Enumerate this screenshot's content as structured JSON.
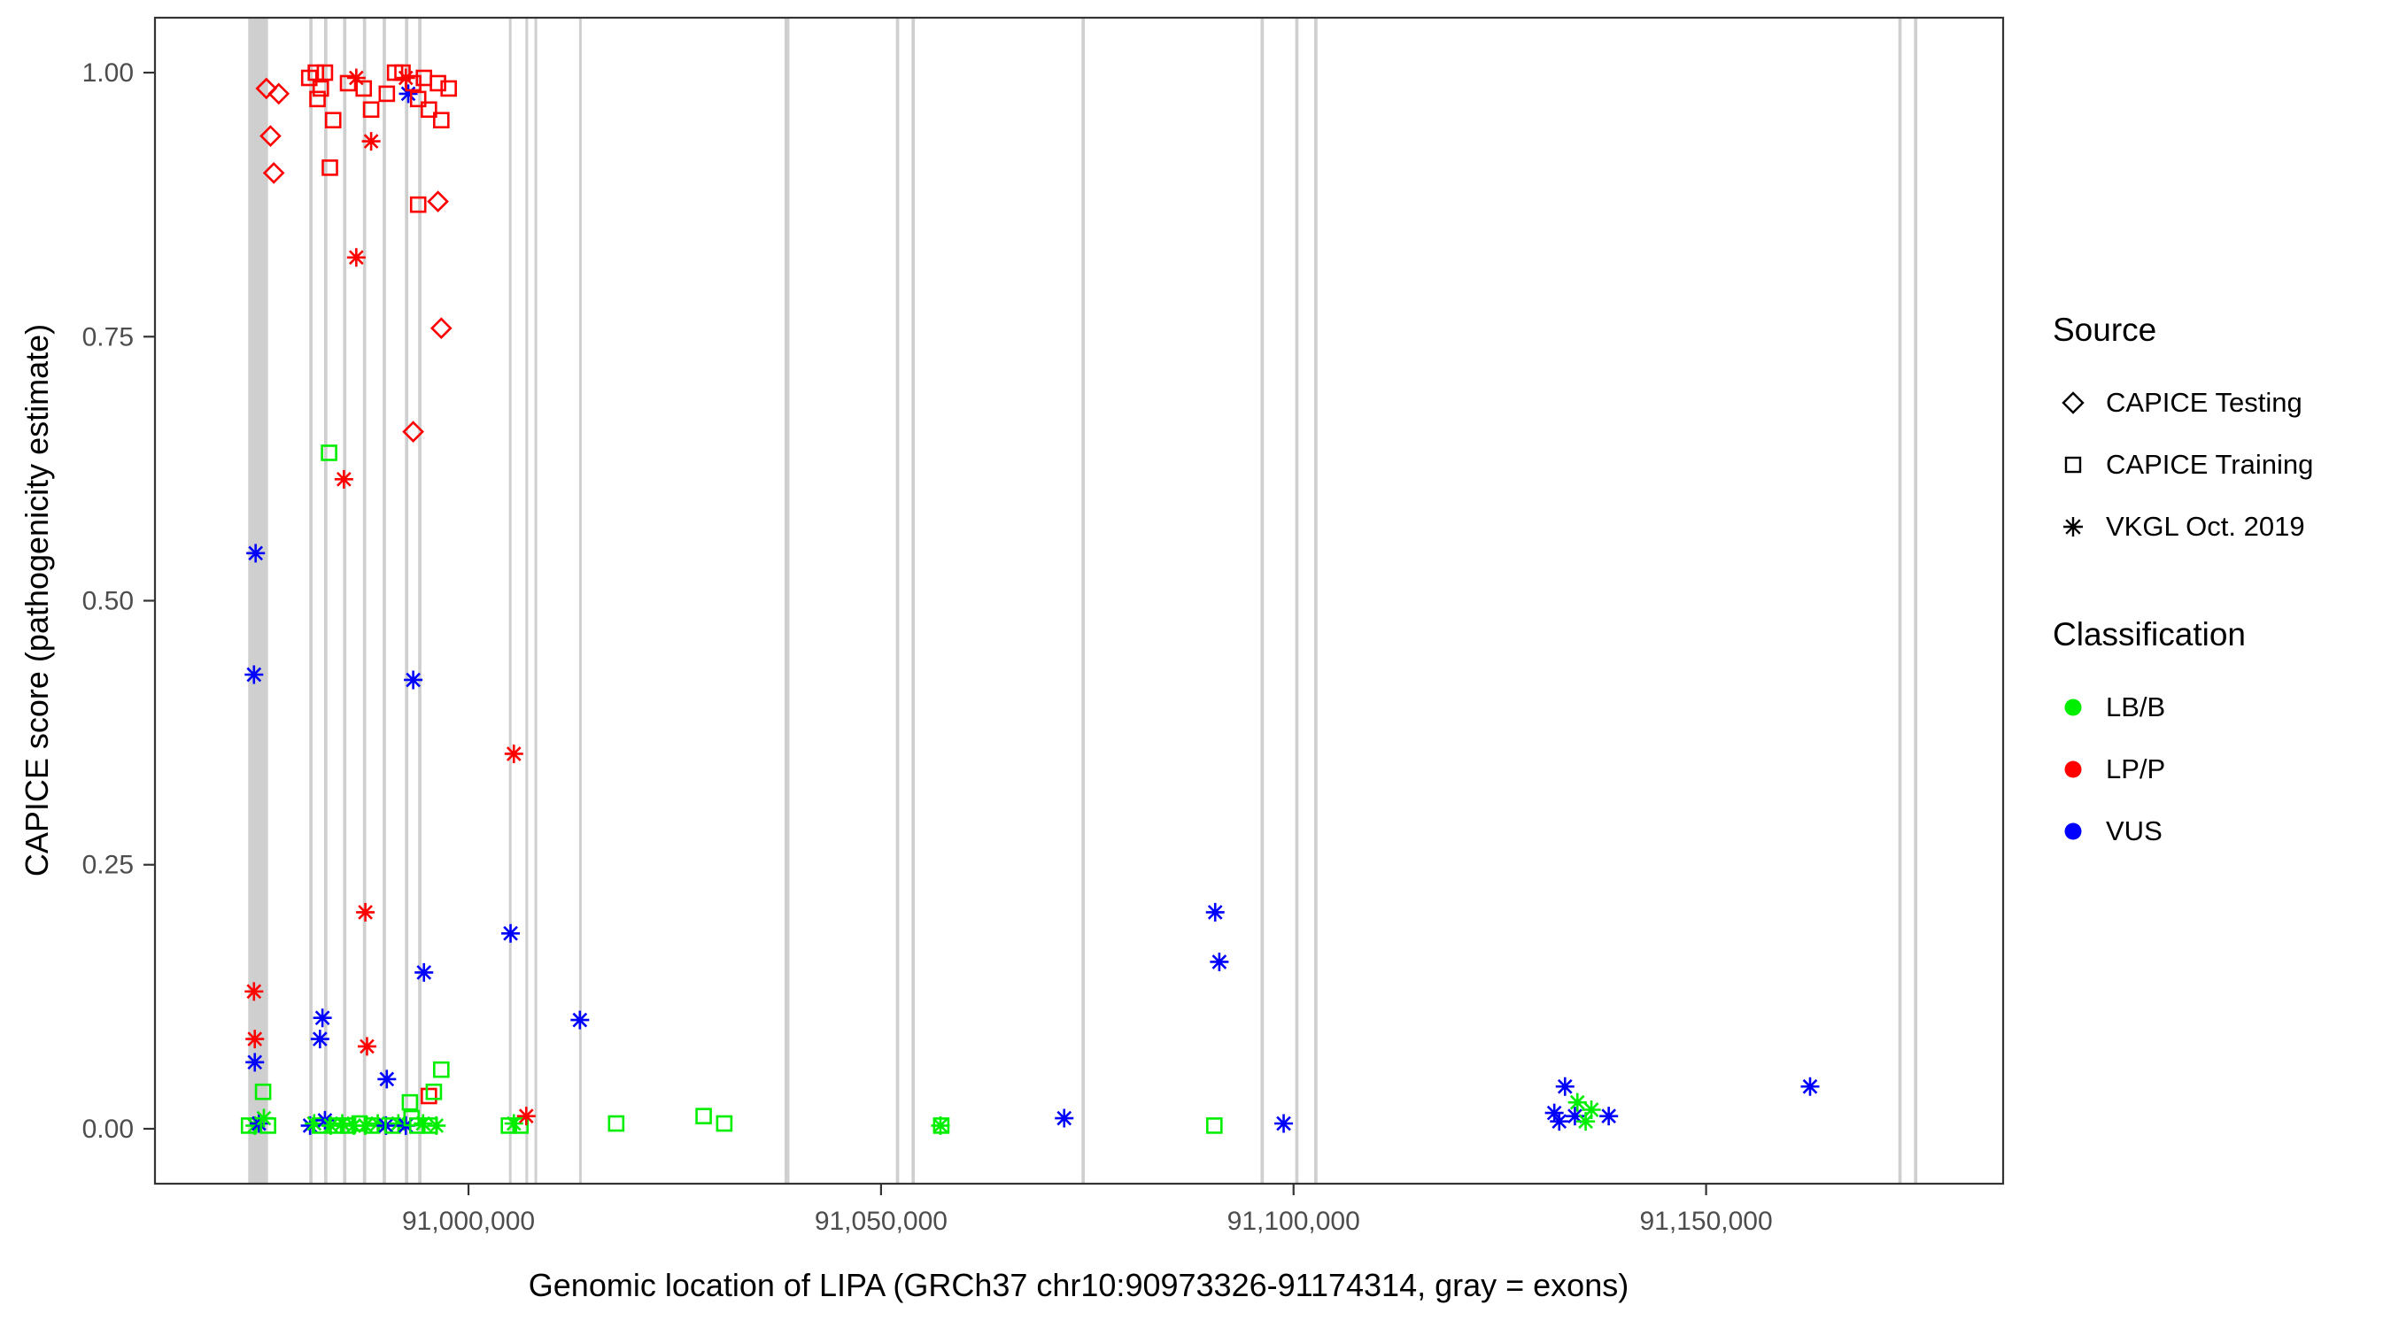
{
  "chart_data": {
    "type": "scatter",
    "title": "",
    "xlabel": "Genomic location of LIPA (GRCh37 chr10:90973326-91174314, gray = exons)",
    "ylabel": "CAPICE score (pathogenicity estimate)",
    "x_domain": [
      90962000,
      91186000
    ],
    "y_domain": [
      -0.052,
      1.052
    ],
    "x_ticks": [
      {
        "value": 91000000,
        "label": "91,000,000"
      },
      {
        "value": 91050000,
        "label": "91,050,000"
      },
      {
        "value": 91100000,
        "label": "91,100,000"
      },
      {
        "value": 91150000,
        "label": "91,150,000"
      }
    ],
    "y_ticks": [
      {
        "value": 0.0,
        "label": "0.00"
      },
      {
        "value": 0.25,
        "label": "0.25"
      },
      {
        "value": 0.5,
        "label": "0.50"
      },
      {
        "value": 0.75,
        "label": "0.75"
      },
      {
        "value": 1.0,
        "label": "1.00"
      }
    ],
    "grid": false,
    "exon_color": "#cfcfcf",
    "panel_border_color": "#333333",
    "tick_label_color": "#4d4d4d",
    "colors": {
      "LB/B": "#00ee00",
      "LP/P": "#ff0000",
      "VUS": "#0000ff"
    },
    "source_shapes": {
      "testing": "diamond",
      "training": "square",
      "vkgl": "asterisk"
    },
    "exons": [
      [
        90973300,
        90975700
      ],
      [
        90980700,
        90981100
      ],
      [
        90982500,
        90982900
      ],
      [
        90984800,
        90985200
      ],
      [
        90987200,
        90987600
      ],
      [
        90989600,
        90990000
      ],
      [
        90992300,
        90992700
      ],
      [
        90993900,
        90994300
      ],
      [
        91004900,
        91005200
      ],
      [
        91006900,
        91007200
      ],
      [
        91008000,
        91008300
      ],
      [
        91013400,
        91013700
      ],
      [
        91038300,
        91038900
      ],
      [
        91051800,
        91052200
      ],
      [
        91053700,
        91054100
      ],
      [
        91074300,
        91074700
      ],
      [
        91096000,
        91096400
      ],
      [
        91100200,
        91100600
      ],
      [
        91102500,
        91102900
      ],
      [
        91173300,
        91173700
      ],
      [
        91175200,
        91175600
      ]
    ],
    "points_format": [
      "genomic_position",
      "capice_score",
      "source",
      "classification"
    ],
    "points": [
      [
        90975500,
        0.985,
        "testing",
        "LP/P"
      ],
      [
        90977000,
        0.98,
        "testing",
        "LP/P"
      ],
      [
        90976000,
        0.94,
        "testing",
        "LP/P"
      ],
      [
        90976400,
        0.905,
        "testing",
        "LP/P"
      ],
      [
        90980700,
        0.995,
        "training",
        "LP/P"
      ],
      [
        90981500,
        1.0,
        "training",
        "LP/P"
      ],
      [
        90982100,
        0.985,
        "training",
        "LP/P"
      ],
      [
        90982600,
        1.0,
        "training",
        "LP/P"
      ],
      [
        90981700,
        0.975,
        "training",
        "LP/P"
      ],
      [
        90985400,
        0.99,
        "training",
        "LP/P"
      ],
      [
        90983600,
        0.955,
        "training",
        "LP/P"
      ],
      [
        90983200,
        0.91,
        "training",
        "LP/P"
      ],
      [
        90986400,
        0.995,
        "vkgl",
        "LP/P"
      ],
      [
        90987300,
        0.985,
        "training",
        "LP/P"
      ],
      [
        90988200,
        0.965,
        "training",
        "LP/P"
      ],
      [
        90988200,
        0.935,
        "vkgl",
        "LP/P"
      ],
      [
        90986400,
        0.825,
        "vkgl",
        "LP/P"
      ],
      [
        90984900,
        0.615,
        "vkgl",
        "LP/P"
      ],
      [
        90983100,
        0.64,
        "training",
        "LB/B"
      ],
      [
        90990100,
        0.98,
        "training",
        "LP/P"
      ],
      [
        90991100,
        1.0,
        "training",
        "LP/P"
      ],
      [
        90992000,
        1.0,
        "training",
        "LP/P"
      ],
      [
        90992400,
        0.995,
        "vkgl",
        "LP/P"
      ],
      [
        90992700,
        0.98,
        "vkgl",
        "VUS"
      ],
      [
        90993300,
        0.99,
        "training",
        "LP/P"
      ],
      [
        90993900,
        0.975,
        "training",
        "LP/P"
      ],
      [
        90994600,
        0.995,
        "training",
        "LP/P"
      ],
      [
        90995200,
        0.965,
        "training",
        "LP/P"
      ],
      [
        90996300,
        0.99,
        "training",
        "LP/P"
      ],
      [
        90996700,
        0.955,
        "training",
        "LP/P"
      ],
      [
        90997600,
        0.985,
        "training",
        "LP/P"
      ],
      [
        90993900,
        0.875,
        "training",
        "LP/P"
      ],
      [
        90996300,
        0.878,
        "testing",
        "LP/P"
      ],
      [
        90996700,
        0.758,
        "testing",
        "LP/P"
      ],
      [
        90993300,
        0.66,
        "testing",
        "LP/P"
      ],
      [
        90974200,
        0.545,
        "vkgl",
        "VUS"
      ],
      [
        90974000,
        0.43,
        "vkgl",
        "VUS"
      ],
      [
        90993300,
        0.425,
        "vkgl",
        "VUS"
      ],
      [
        91005500,
        0.355,
        "vkgl",
        "LP/P"
      ],
      [
        90987500,
        0.205,
        "vkgl",
        "LP/P"
      ],
      [
        91005100,
        0.185,
        "vkgl",
        "VUS"
      ],
      [
        90994600,
        0.148,
        "vkgl",
        "VUS"
      ],
      [
        91013500,
        0.103,
        "vkgl",
        "VUS"
      ],
      [
        90974000,
        0.13,
        "vkgl",
        "LP/P"
      ],
      [
        90974100,
        0.085,
        "vkgl",
        "LP/P"
      ],
      [
        90974100,
        0.063,
        "vkgl",
        "VUS"
      ],
      [
        90982300,
        0.105,
        "vkgl",
        "VUS"
      ],
      [
        90982000,
        0.085,
        "vkgl",
        "VUS"
      ],
      [
        90987700,
        0.078,
        "vkgl",
        "LP/P"
      ],
      [
        90990100,
        0.047,
        "vkgl",
        "VUS"
      ],
      [
        90975100,
        0.035,
        "training",
        "LB/B"
      ],
      [
        90996700,
        0.056,
        "training",
        "LB/B"
      ],
      [
        90992900,
        0.025,
        "training",
        "LB/B"
      ],
      [
        90995200,
        0.031,
        "training",
        "LP/P"
      ],
      [
        90995800,
        0.035,
        "training",
        "LB/B"
      ],
      [
        90973400,
        0.003,
        "training",
        "LB/B"
      ],
      [
        90974100,
        0.003,
        "vkgl",
        "LB/B"
      ],
      [
        90974600,
        0.005,
        "vkgl",
        "VUS"
      ],
      [
        90975200,
        0.01,
        "vkgl",
        "LB/B"
      ],
      [
        90975700,
        0.003,
        "training",
        "LB/B"
      ],
      [
        90980800,
        0.003,
        "vkgl",
        "VUS"
      ],
      [
        90981300,
        0.005,
        "vkgl",
        "LB/B"
      ],
      [
        90982000,
        0.003,
        "training",
        "LB/B"
      ],
      [
        90982600,
        0.008,
        "vkgl",
        "VUS"
      ],
      [
        90983300,
        0.003,
        "vkgl",
        "LB/B"
      ],
      [
        90984000,
        0.003,
        "training",
        "LB/B"
      ],
      [
        90984700,
        0.005,
        "vkgl",
        "LB/B"
      ],
      [
        90985400,
        0.003,
        "training",
        "LB/B"
      ],
      [
        90986100,
        0.003,
        "vkgl",
        "LB/B"
      ],
      [
        90986800,
        0.005,
        "training",
        "LB/B"
      ],
      [
        90987500,
        0.003,
        "vkgl",
        "LB/B"
      ],
      [
        90988300,
        0.003,
        "training",
        "LB/B"
      ],
      [
        90989000,
        0.005,
        "vkgl",
        "LB/B"
      ],
      [
        90990000,
        0.003,
        "vkgl",
        "VUS"
      ],
      [
        90990800,
        0.003,
        "training",
        "LB/B"
      ],
      [
        90991500,
        0.005,
        "vkgl",
        "LB/B"
      ],
      [
        90992400,
        0.003,
        "vkgl",
        "VUS"
      ],
      [
        90993100,
        0.01,
        "training",
        "LB/B"
      ],
      [
        90993800,
        0.003,
        "training",
        "LB/B"
      ],
      [
        90994500,
        0.005,
        "vkgl",
        "LB/B"
      ],
      [
        90995300,
        0.003,
        "training",
        "LB/B"
      ],
      [
        90996100,
        0.003,
        "vkgl",
        "LB/B"
      ],
      [
        91004900,
        0.003,
        "training",
        "LB/B"
      ],
      [
        91005500,
        0.005,
        "vkgl",
        "LB/B"
      ],
      [
        91006300,
        0.003,
        "training",
        "LB/B"
      ],
      [
        91007000,
        0.012,
        "vkgl",
        "LP/P"
      ],
      [
        91017900,
        0.005,
        "training",
        "LB/B"
      ],
      [
        91028500,
        0.012,
        "training",
        "LB/B"
      ],
      [
        91031000,
        0.005,
        "training",
        "LB/B"
      ],
      [
        91057200,
        0.003,
        "vkgl",
        "LB/B"
      ],
      [
        91057300,
        0.003,
        "training",
        "LB/B"
      ],
      [
        91072200,
        0.01,
        "vkgl",
        "VUS"
      ],
      [
        91090400,
        0.003,
        "training",
        "LB/B"
      ],
      [
        91090500,
        0.205,
        "vkgl",
        "VUS"
      ],
      [
        91091000,
        0.158,
        "vkgl",
        "VUS"
      ],
      [
        91098800,
        0.005,
        "vkgl",
        "VUS"
      ],
      [
        91131600,
        0.015,
        "vkgl",
        "VUS"
      ],
      [
        91132200,
        0.007,
        "vkgl",
        "VUS"
      ],
      [
        91132900,
        0.04,
        "vkgl",
        "VUS"
      ],
      [
        91134100,
        0.012,
        "vkgl",
        "VUS"
      ],
      [
        91134400,
        0.025,
        "vkgl",
        "LB/B"
      ],
      [
        91135400,
        0.007,
        "vkgl",
        "LB/B"
      ],
      [
        91136100,
        0.018,
        "vkgl",
        "LB/B"
      ],
      [
        91138200,
        0.012,
        "vkgl",
        "VUS"
      ],
      [
        91162600,
        0.04,
        "vkgl",
        "VUS"
      ]
    ]
  },
  "legend": {
    "source": {
      "title": "Source",
      "items": [
        {
          "label": "CAPICE Testing",
          "shape": "diamond"
        },
        {
          "label": "CAPICE Training",
          "shape": "square"
        },
        {
          "label": "VKGL Oct. 2019",
          "shape": "asterisk"
        }
      ]
    },
    "classification": {
      "title": "Classification",
      "items": [
        {
          "label": "LB/B",
          "color": "#00ee00"
        },
        {
          "label": "LP/P",
          "color": "#ff0000"
        },
        {
          "label": "VUS",
          "color": "#0000ff"
        }
      ]
    }
  }
}
